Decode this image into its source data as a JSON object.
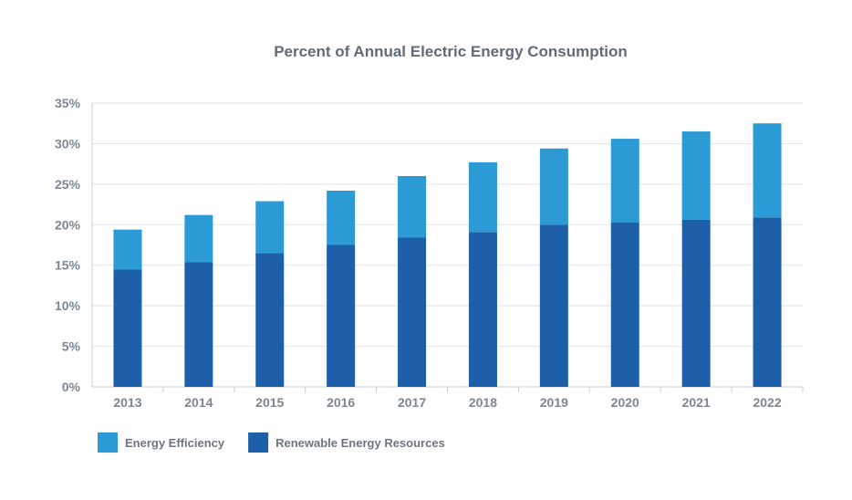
{
  "chart_data": {
    "type": "bar",
    "stacked": true,
    "title": "Percent of Annual Electric Energy Consumption",
    "categories": [
      "2013",
      "2014",
      "2015",
      "2016",
      "2017",
      "2018",
      "2019",
      "2020",
      "2021",
      "2022"
    ],
    "series": [
      {
        "name": "Renewable Energy Resources",
        "color": "#1d5fa8",
        "values": [
          14.5,
          15.4,
          16.5,
          17.5,
          18.4,
          19.1,
          20.0,
          20.3,
          20.6,
          20.9
        ]
      },
      {
        "name": "Energy Efficiency",
        "color": "#2b9ad5",
        "values": [
          4.9,
          5.8,
          6.4,
          6.7,
          7.6,
          8.6,
          9.4,
          10.3,
          10.9,
          11.6
        ]
      }
    ],
    "ylim": [
      0,
      35
    ],
    "yticks": [
      0,
      5,
      10,
      15,
      20,
      25,
      30,
      35
    ],
    "ytick_labels": [
      "0%",
      "5%",
      "10%",
      "15%",
      "20%",
      "25%",
      "30%",
      "35%"
    ],
    "grid": true,
    "legend_position": "bottom-left",
    "legend": [
      {
        "label": "Energy Efficiency",
        "color": "#2b9ad5"
      },
      {
        "label": "Renewable Energy Resources",
        "color": "#1d5fa8"
      }
    ]
  }
}
